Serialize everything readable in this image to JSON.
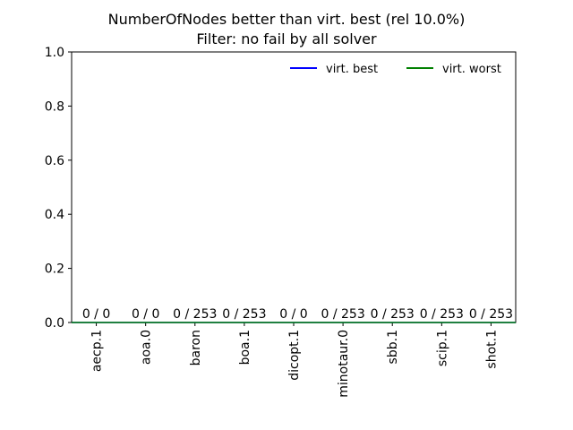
{
  "chart_data": {
    "type": "bar",
    "title": "NumberOfNodes better than virt. best (rel 10.0%)",
    "subtitle": "Filter: no fail by all solver",
    "categories": [
      "aecp.1",
      "aoa.0",
      "baron",
      "boa.1",
      "dicopt.1",
      "minotaur.0",
      "sbb.1",
      "scip.1",
      "shot.1"
    ],
    "values": [
      0,
      0,
      0,
      0,
      0,
      0,
      0,
      0,
      0
    ],
    "data_labels": [
      "0 / 0",
      "0 / 0",
      "0 / 253",
      "0 / 253",
      "0 / 0",
      "0 / 253",
      "0 / 253",
      "0 / 253",
      "0 / 253"
    ],
    "ylim": [
      0,
      1.0
    ],
    "yticks": [
      "0.0",
      "0.2",
      "0.4",
      "0.6",
      "0.8",
      "1.0"
    ],
    "grid": false,
    "legend_position": "top-right",
    "series": [
      {
        "name": "virt. best",
        "color": "#0000ff",
        "values": [
          0,
          0,
          0,
          0,
          0,
          0,
          0,
          0,
          0
        ]
      },
      {
        "name": "virt. worst",
        "color": "#008000",
        "values": [
          0,
          0,
          0,
          0,
          0,
          0,
          0,
          0,
          0
        ]
      }
    ]
  }
}
